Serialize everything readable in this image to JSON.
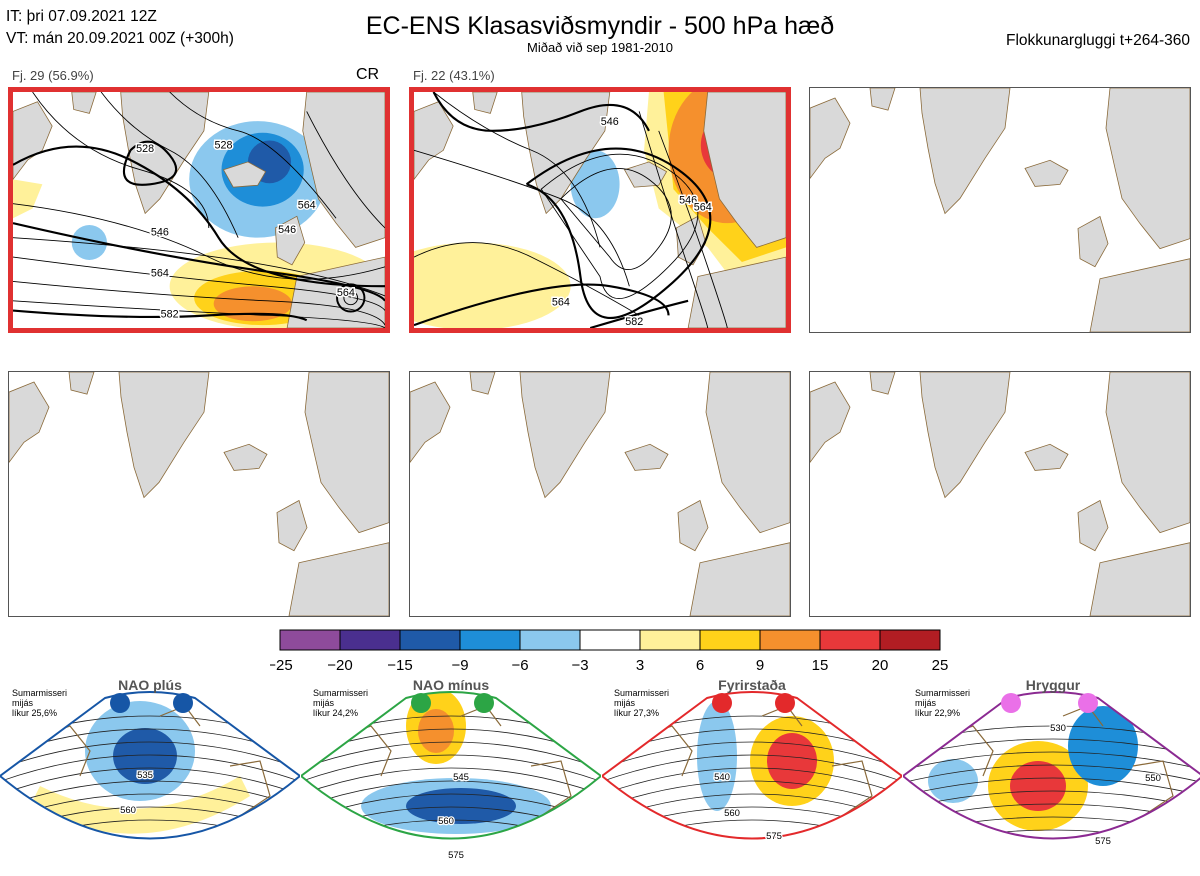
{
  "header": {
    "it_line": "IT: þri 07.09.2021 12Z",
    "vt_line": "VT: mán 20.09.2021 00Z  (+300h)",
    "title": "EC-ENS Klasasviðsmyndir - 500 hPa hæð",
    "subtitle": "Miðað við sep 1981-2010",
    "window": "Flokkunargluggi t+264-360"
  },
  "panels": [
    {
      "title": "Fj. 29 (56.9%)",
      "tag": "CR",
      "selected": true,
      "contour_labels": [
        "528",
        "528",
        "546",
        "546",
        "564",
        "564",
        "564",
        "582"
      ]
    },
    {
      "title": "Fj. 22 (43.1%)",
      "tag": "",
      "selected": true,
      "contour_labels": [
        "546",
        "546",
        "564",
        "564",
        "582"
      ]
    },
    {
      "title": "",
      "tag": "",
      "selected": false
    },
    {
      "title": "",
      "tag": "",
      "selected": false
    },
    {
      "title": "",
      "tag": "",
      "selected": false
    },
    {
      "title": "",
      "tag": "",
      "selected": false
    }
  ],
  "chart_data": {
    "type": "heatmap",
    "colorbar": {
      "ticks": [
        "-25",
        "-20",
        "-15",
        "-9",
        "-6",
        "-3",
        "3",
        "6",
        "9",
        "15",
        "20",
        "25"
      ],
      "colors": [
        "#8e4b9b",
        "#4a2f8f",
        "#1f5aa8",
        "#1e8ed8",
        "#8bc8ee",
        "#ffffff",
        "#fff19a",
        "#ffd21a",
        "#f5902d",
        "#e8383a",
        "#b11d23"
      ]
    }
  },
  "regimes": [
    {
      "name": "NAO plús",
      "season": "Sumarmisseri",
      "freq": "mijás",
      "prob": "líkur 25,6%",
      "color": "#1656a6",
      "dot_color": "#1656a6",
      "labels": [
        "535",
        "560"
      ]
    },
    {
      "name": "NAO mínus",
      "season": "Sumarmisseri",
      "freq": "mijás",
      "prob": "líkur 24,2%",
      "color": "#2ca545",
      "dot_color": "#2ca545",
      "labels": [
        "545",
        "560",
        "575"
      ]
    },
    {
      "name": "Fyrirstaða",
      "season": "Sumarmisseri",
      "freq": "mijás",
      "prob": "líkur 27,3%",
      "color": "#e3292b",
      "dot_color": "#e3292b",
      "labels": [
        "540",
        "560",
        "575"
      ]
    },
    {
      "name": "Hryggur",
      "season": "Sumarmisseri",
      "freq": "mijás",
      "prob": "líkur 22,9%",
      "color": "#8b2a92",
      "dot_color": "#ea70e8",
      "labels": [
        "530",
        "550",
        "575"
      ]
    }
  ]
}
